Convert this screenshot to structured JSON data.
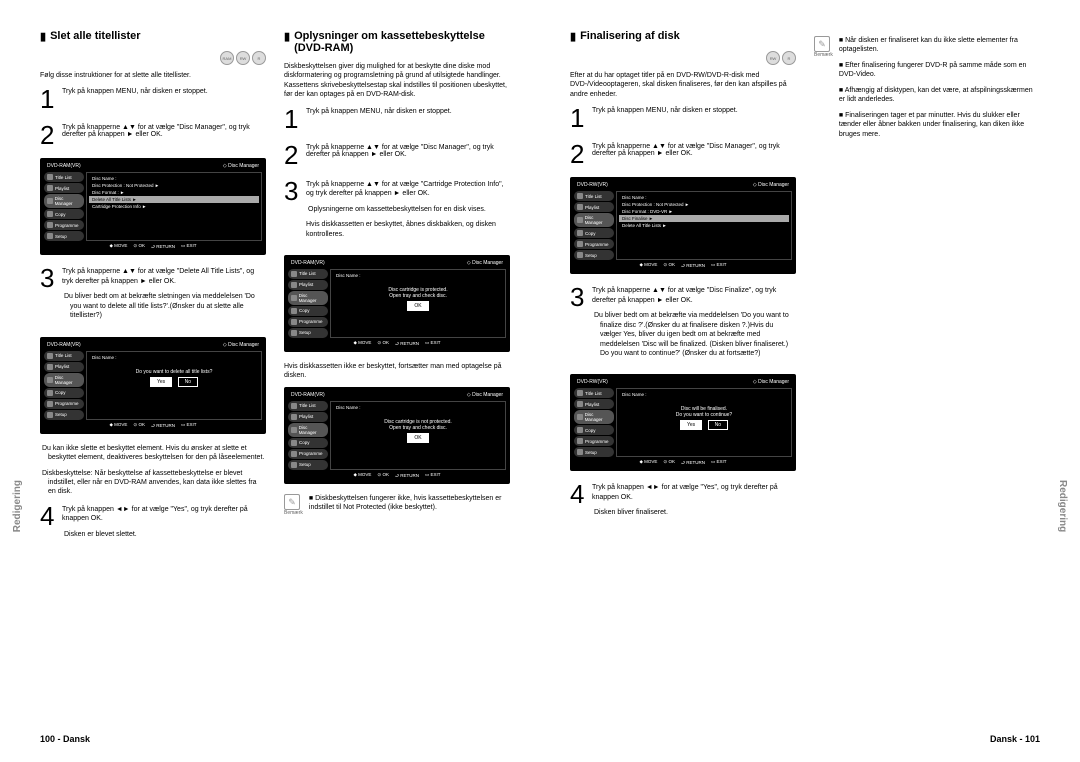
{
  "sideLabel": "Redigering",
  "pageLeft": {
    "num": "100",
    "lang": "Dansk"
  },
  "pageRight": {
    "num": "101",
    "lang": "Dansk"
  },
  "discIcons": [
    "RAM",
    "RW",
    "R"
  ],
  "tvFooter": [
    "◆ MOVE",
    "⊙ OK",
    "⮐ RETURN",
    "▭ EXIT"
  ],
  "tvSide": [
    "Title List",
    "Playlist",
    "Disc Manager",
    "Copy",
    "Programme",
    "Setup"
  ],
  "sec1": {
    "title": "Slet alle titellister",
    "intro": "Følg disse instruktioner for at slette alle titellister.",
    "s1": "Tryk på knappen MENU, når disken er stoppet.",
    "s2": "Tryk på knapperne ▲▼ for at vælge \"Disc Manager\", og tryk derefter på knappen ► eller OK.",
    "s3": "Tryk på knapperne ▲▼ for at vælge \"Delete All Title Lists\", og tryk derefter på knappen ► eller OK.",
    "s3b1": "Du bliver bedt om at bekræfte sletningen via meddelelsen 'Do you want to delete all title lists?'.(Ønsker du at slette alle titellister?)",
    "s3b2": "Du kan ikke slette et beskyttet element. Hvis du ønsker at slette et beskyttet element, deaktiveres beskyttelsen for den på låseelementet.",
    "s3b3": "Diskbeskyttelse: Når beskyttelse af kassettebeskyttelse er blevet indstillet, eller når en DVD-RAM anvendes, kan data ikke slettes fra en disk.",
    "s4": "Tryk på knappen ◄► for at vælge \"Yes\", og tryk derefter på knappen OK.",
    "s4b": "Disken er blevet slettet.",
    "tv1": {
      "hdr": "DVD-RAM(VR)",
      "mgr": "◇ Disc Manager",
      "rows": [
        "Disc Name   :",
        "Disc Protection : Not Protected  ►",
        "Disc Format :   ►",
        "Delete All Title Lists   ►",
        "Cartridge Protection Info   ►"
      ],
      "hl": 3
    },
    "tv2": {
      "hdr": "DVD-RAM(VR)",
      "mgr": "◇ Disc Manager",
      "dlg": "Do you want to delete all title lists?",
      "btns": [
        "Yes",
        "No"
      ],
      "row": "Disc Name   :"
    }
  },
  "sec2": {
    "title": "Oplysninger om kassettebeskyttelse (DVD-RAM)",
    "intro": "Diskbeskyttelsen giver dig mulighed for at beskytte dine diske mod diskformatering og programsletning på grund af utilsigtede handlinger. Kassettens skrivebeskyttelsestap skal indstilles til positionen ubeskyttet, før der kan optages på en DVD-RAM-disk.",
    "s1": "Tryk på knappen MENU, når disken er stoppet.",
    "s2": "Tryk på knapperne ▲▼ for at vælge \"Disc Manager\", og tryk derefter på knappen ► eller OK.",
    "s3": "Tryk på knapperne ▲▼ for at vælge \"Cartridge Protection Info\", og tryk derefter på knappen ► eller OK.",
    "s3b1": "Oplysningerne om kassettebeskyttelsen for en disk vises.",
    "s3b2": "Hvis diskkassetten er beskyttet, åbnes diskbakken, og disken kontrolleres.",
    "s3b3": "Hvis diskkassetten ikke er beskyttet, fortsætter man med optagelse på disken.",
    "tv1": {
      "hdr": "DVD-RAM(VR)",
      "mgr": "◇ Disc Manager",
      "dlg1": "Disc cartridge is protected.",
      "dlg2": "Open tray and check disc.",
      "row": "Disc Name   :"
    },
    "tv2": {
      "hdr": "DVD-RAM(VR)",
      "mgr": "◇ Disc Manager",
      "dlg1": "Disc cartridge is not protected.",
      "dlg2": "Open tray and check disc.",
      "row": "Disc Name   :"
    },
    "note": "Diskbeskyttelsen fungerer ikke, hvis kassettebeskyttelsen er indstillet til Not Protected (ikke beskyttet).",
    "noteLbl": "Bemærk"
  },
  "sec3": {
    "title": "Finalisering af disk",
    "intro": "Efter at du har optaget titler på en DVD-RW/DVD-R-disk med DVD-/Videooptageren, skal disken finaliseres, før den kan afspilles på andre enheder.",
    "s1": "Tryk på knappen MENU, når disken er stoppet.",
    "s2": "Tryk på knapperne ▲▼ for at vælge \"Disc Manager\", og tryk derefter på knappen ► eller OK.",
    "s3": "Tryk på knapperne ▲▼ for at vælge \"Disc Finalize\", og tryk derefter på knappen ► eller OK.",
    "s3b1": "Du bliver bedt om at bekræfte via meddelelsen 'Do you want to finalize disc ?'.(Ønsker du at finalisere disken ?.)Hvis du vælger Yes, bliver du igen bedt om at bekræfte med meddelelsen 'Disc will be finalized. (Disken bliver finaliseret.) Do you want to continue?' (Ønsker du at fortsætte?)",
    "s4": "Tryk på knappen ◄► for at vælge \"Yes\", og tryk derefter på knappen OK.",
    "s4b": "Disken bliver finaliseret.",
    "tv1": {
      "hdr": "DVD-RW(VR)",
      "mgr": "◇ Disc Manager",
      "rows": [
        "Disc Name   :",
        "Disc Protection : Not Protected  ►",
        "Disc Format : DVD-VR   ►",
        "Disc Finalise   ►",
        "Delete All Title Lists   ►"
      ],
      "hl": 3
    },
    "tv2": {
      "hdr": "DVD-RW(VR)",
      "mgr": "◇ Disc Manager",
      "dlg1": "Disc will be finalised.",
      "dlg2": "Do you want to continue?",
      "btns": [
        "Yes",
        "No"
      ],
      "row": "Disc Name   :"
    }
  },
  "sec4": {
    "n1": "Når disken er finaliseret kan du ikke slette elementer fra optagelisten.",
    "n2": "Efter finalisering fungerer DVD-R på samme måde som en DVD-Video.",
    "n3": "Afhængig af disktypen, kan det være, at afspilningsskærmen er lidt anderledes.",
    "n4": "Finaliseringen tager et par minutter. Hvis du slukker eller tænder eller åbner bakken under finalisering, kan diken ikke bruges mere.",
    "noteLbl": "Bemærk"
  }
}
